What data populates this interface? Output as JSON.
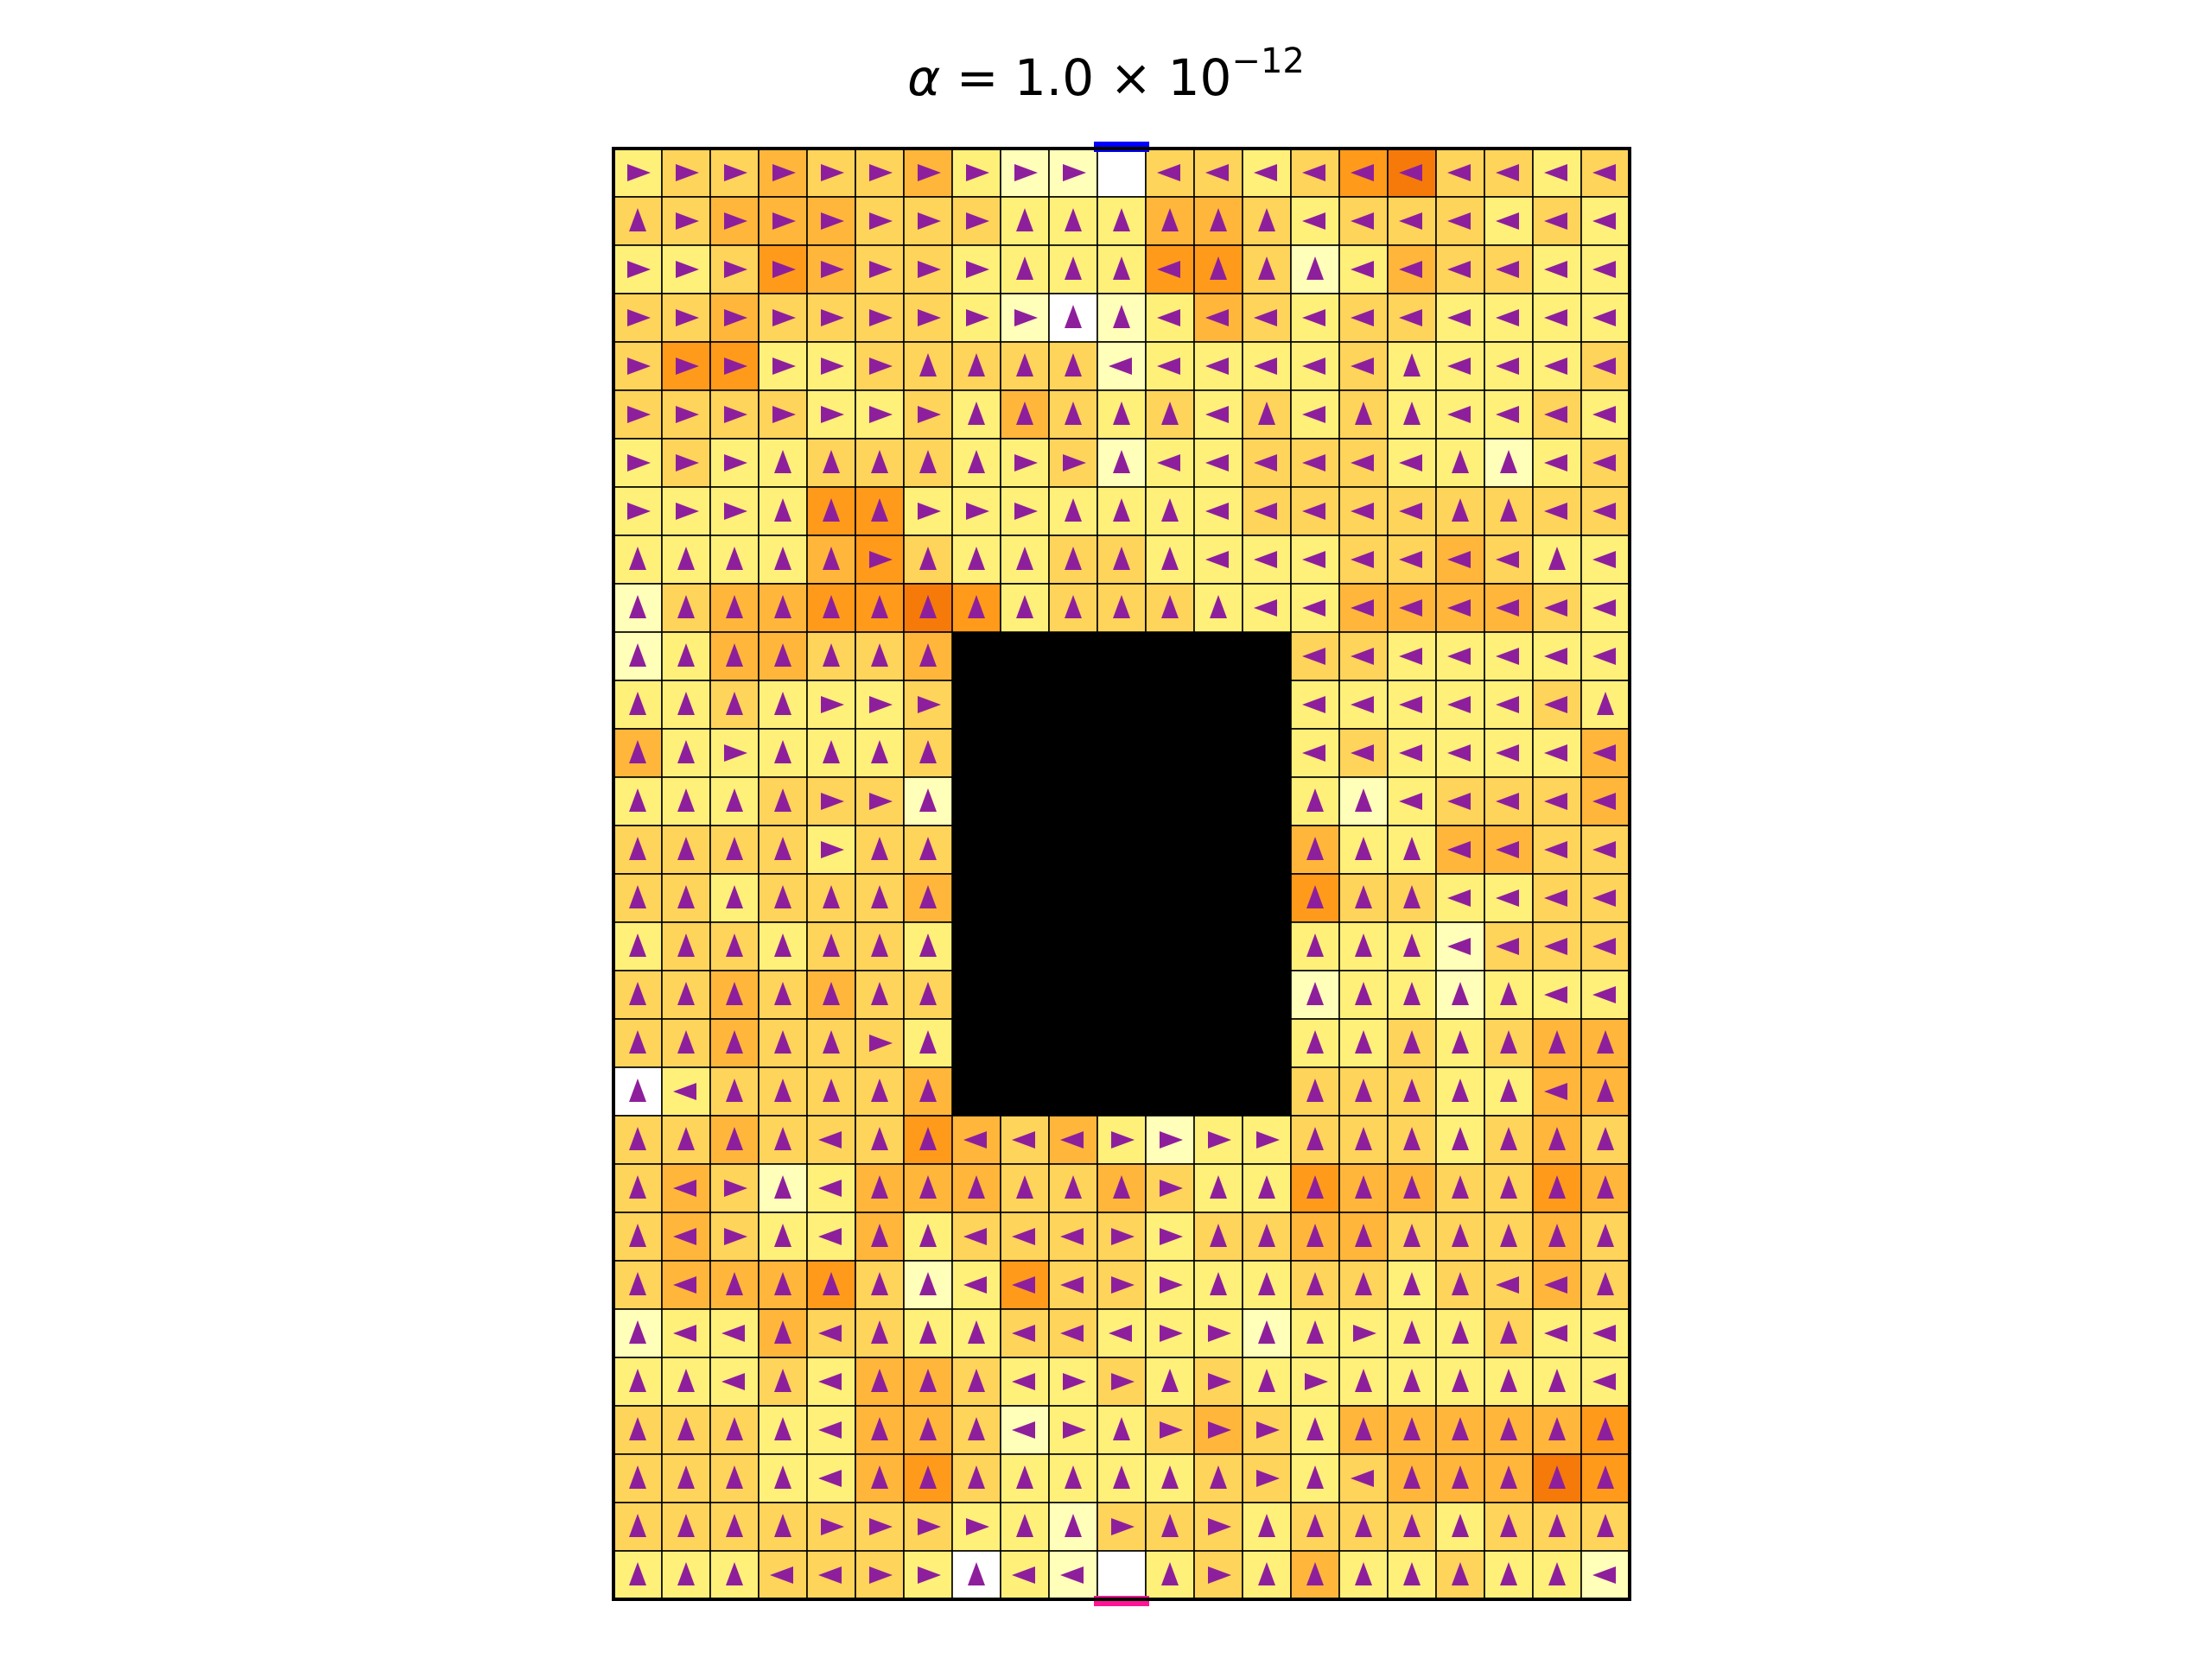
{
  "chart_data": {
    "type": "heatmap",
    "title": {
      "symbol": "α",
      "equals": " = ",
      "mantissa": "1.0",
      "times": " × ",
      "base": "10",
      "exponent": "−12"
    },
    "xlabel": "",
    "ylabel": "",
    "grid": true,
    "legend": "none",
    "n_cols": 21,
    "n_rows": 30,
    "obstacle": {
      "col_start": 7,
      "col_end": 13,
      "row_start": 10,
      "row_end": 19
    },
    "entry": {
      "row": 0,
      "col": 10,
      "marker_color": "#0000ff"
    },
    "exit": {
      "row": 29,
      "col": 10,
      "marker_color": "#ff1493"
    },
    "directions_legend": {
      ">": "right",
      "<": "left",
      "^": "up"
    },
    "directions": [
      ">>>>>>>>>>.<<<<<<<<<<",
      "^>>>>>>>^^^^^^<<<<<<<",
      ">>>>>>>>^^^<^^^<<<<<<",
      ">>>>>>>>>^^<<<<<<<<<<",
      ">>>>>>^^^^<<<<<<^<<<<",
      ">>>>>>>^^^^^<^<^^<<<<",
      ">>>^^^^^>>^<<<<<<^^<<",
      ">>>^^^>>>^^^<<<<<^^<<",
      "^^^^^>^^^^^^<<<<<<<^<",
      "^^^^^^^^^^^^^<<<<<<<<",
      "^^^^^^^######^<<<<<<<",
      "^^^^>>>######^<<<<<<^",
      "^^>^^^^######^<<<<<<<",
      "^^^^>>^######^^^<<<<<",
      "^^^^>^^######^^^^<<<<",
      "^^^^^^^######^^^^<<<<",
      "^^^^^^^######^^^^<<<<",
      "^^^^^^^######^^^^^^<<",
      "^^^^^>^######^^^^^^^^",
      "^<^^^^^######^^^^^^<^",
      "^^^^<^^<<<>>>>^^^^^^^",
      "^<>^<^^^^^^>^^^^^^^^^",
      "^<>^<^^<<<>>^^^^^^^^^",
      "^<^^^^^<<<>>^^^^^^<<^",
      "^<<^<^^^<<<>>^^>^^^<<",
      "^^<^<^^^<>>^>^>^^^^^<",
      "^^^^<^^^<>^>>>^^^^^^^",
      "^^^^<^^^^^^^^>^<^^^^^",
      "^^^^>>>>^^>^>^^^^^^^^",
      "^^^<<>>^<<.^>^^^^^^^<"
    ],
    "color_scale": {
      "palette": [
        "#ffffff",
        "#ffffb9",
        "#fff07a",
        "#ffd45a",
        "#ffb63a",
        "#ff9a1a",
        "#f57a0a",
        "#d05a10"
      ],
      "obstacle_color": "#000000",
      "grid_color": "#000000",
      "arrow_color": "#8e1f9c"
    },
    "intensity": [
      [
        2,
        3,
        3,
        4,
        3,
        3,
        4,
        2,
        1,
        1,
        0,
        3,
        3,
        2,
        3,
        5,
        6,
        3,
        3,
        2,
        3
      ],
      [
        3,
        3,
        4,
        4,
        4,
        3,
        3,
        3,
        2,
        2,
        2,
        4,
        4,
        3,
        2,
        3,
        3,
        3,
        2,
        3,
        2
      ],
      [
        2,
        2,
        3,
        5,
        4,
        3,
        3,
        2,
        2,
        2,
        2,
        5,
        5,
        3,
        1,
        2,
        4,
        3,
        3,
        2,
        2
      ],
      [
        3,
        3,
        4,
        3,
        3,
        3,
        3,
        2,
        1,
        0,
        1,
        2,
        4,
        3,
        2,
        3,
        3,
        2,
        2,
        2,
        2
      ],
      [
        3,
        5,
        5,
        2,
        2,
        3,
        3,
        3,
        3,
        3,
        1,
        2,
        2,
        2,
        2,
        3,
        2,
        2,
        2,
        2,
        3
      ],
      [
        3,
        3,
        3,
        3,
        2,
        2,
        3,
        2,
        4,
        3,
        2,
        3,
        2,
        3,
        2,
        3,
        2,
        2,
        2,
        3,
        2
      ],
      [
        2,
        3,
        2,
        2,
        3,
        3,
        3,
        2,
        2,
        3,
        1,
        2,
        2,
        3,
        3,
        3,
        2,
        2,
        1,
        2,
        3
      ],
      [
        2,
        2,
        2,
        2,
        5,
        5,
        2,
        2,
        2,
        2,
        2,
        2,
        2,
        3,
        3,
        3,
        3,
        3,
        3,
        3,
        3
      ],
      [
        2,
        2,
        2,
        2,
        4,
        5,
        3,
        2,
        2,
        3,
        3,
        2,
        2,
        2,
        2,
        3,
        3,
        4,
        3,
        2,
        2
      ],
      [
        1,
        3,
        4,
        4,
        5,
        5,
        6,
        5,
        2,
        3,
        3,
        3,
        2,
        2,
        2,
        4,
        4,
        4,
        4,
        3,
        2
      ],
      [
        1,
        2,
        4,
        4,
        3,
        3,
        4,
        0,
        0,
        0,
        0,
        0,
        0,
        2,
        3,
        3,
        2,
        2,
        2,
        2,
        2
      ],
      [
        2,
        2,
        3,
        2,
        2,
        2,
        3,
        0,
        0,
        0,
        0,
        0,
        0,
        2,
        2,
        2,
        2,
        2,
        2,
        3,
        2
      ],
      [
        4,
        2,
        2,
        2,
        2,
        2,
        3,
        0,
        0,
        0,
        0,
        0,
        0,
        2,
        2,
        3,
        2,
        2,
        2,
        2,
        4
      ],
      [
        2,
        2,
        2,
        3,
        3,
        3,
        1,
        0,
        0,
        0,
        0,
        0,
        0,
        3,
        2,
        1,
        2,
        3,
        3,
        3,
        4
      ],
      [
        3,
        3,
        3,
        3,
        2,
        3,
        3,
        0,
        0,
        0,
        0,
        0,
        0,
        4,
        4,
        2,
        2,
        4,
        4,
        3,
        3
      ],
      [
        3,
        3,
        2,
        3,
        3,
        3,
        4,
        0,
        0,
        0,
        0,
        0,
        0,
        4,
        5,
        3,
        3,
        2,
        2,
        3,
        3
      ],
      [
        2,
        3,
        3,
        2,
        3,
        3,
        2,
        0,
        0,
        0,
        0,
        0,
        0,
        4,
        2,
        2,
        2,
        1,
        3,
        3,
        3
      ],
      [
        3,
        3,
        4,
        3,
        4,
        3,
        3,
        0,
        0,
        0,
        0,
        0,
        0,
        2,
        1,
        2,
        2,
        1,
        2,
        2,
        2
      ],
      [
        3,
        3,
        4,
        3,
        3,
        3,
        2,
        0,
        0,
        0,
        0,
        0,
        0,
        2,
        2,
        2,
        3,
        2,
        3,
        4,
        4
      ],
      [
        0,
        2,
        3,
        3,
        3,
        3,
        4,
        0,
        0,
        0,
        0,
        0,
        0,
        2,
        3,
        3,
        3,
        2,
        2,
        4,
        4
      ],
      [
        3,
        3,
        4,
        3,
        3,
        3,
        5,
        4,
        3,
        4,
        2,
        1,
        2,
        2,
        3,
        3,
        3,
        2,
        3,
        4,
        3
      ],
      [
        3,
        4,
        3,
        1,
        2,
        4,
        4,
        4,
        3,
        3,
        4,
        3,
        2,
        2,
        5,
        4,
        4,
        3,
        3,
        5,
        4
      ],
      [
        3,
        4,
        3,
        2,
        2,
        4,
        2,
        3,
        3,
        3,
        3,
        2,
        3,
        3,
        4,
        4,
        3,
        3,
        3,
        4,
        3
      ],
      [
        3,
        4,
        4,
        4,
        5,
        3,
        1,
        2,
        5,
        3,
        3,
        2,
        2,
        2,
        3,
        3,
        2,
        3,
        3,
        4,
        3
      ],
      [
        1,
        2,
        2,
        4,
        3,
        3,
        2,
        2,
        3,
        3,
        2,
        2,
        2,
        1,
        2,
        2,
        2,
        2,
        3,
        2,
        2
      ],
      [
        2,
        2,
        2,
        3,
        2,
        4,
        4,
        3,
        2,
        2,
        3,
        2,
        3,
        2,
        2,
        2,
        2,
        2,
        2,
        2,
        2
      ],
      [
        3,
        3,
        3,
        2,
        2,
        4,
        4,
        3,
        1,
        2,
        2,
        3,
        4,
        3,
        2,
        4,
        4,
        4,
        4,
        4,
        5
      ],
      [
        3,
        3,
        3,
        2,
        2,
        4,
        5,
        3,
        2,
        2,
        2,
        2,
        3,
        3,
        2,
        3,
        4,
        4,
        4,
        6,
        5
      ],
      [
        3,
        3,
        3,
        3,
        3,
        3,
        3,
        2,
        2,
        1,
        3,
        3,
        3,
        2,
        3,
        3,
        3,
        2,
        3,
        3,
        3
      ],
      [
        2,
        2,
        2,
        3,
        3,
        3,
        2,
        0,
        2,
        1,
        0,
        2,
        3,
        2,
        4,
        2,
        2,
        3,
        2,
        2,
        1
      ]
    ]
  }
}
